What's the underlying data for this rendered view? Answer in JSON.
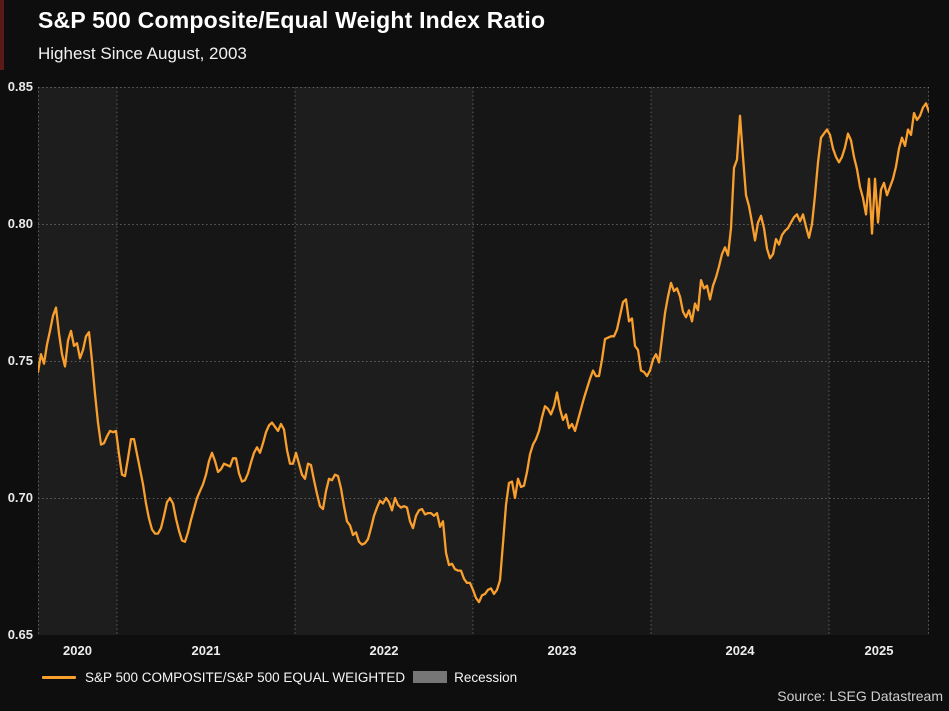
{
  "header": {
    "title": "S&P 500 Composite/Equal Weight Index Ratio",
    "subtitle": "Highest Since August, 2003"
  },
  "footer": {
    "source": "Source: LSEG Datastream"
  },
  "legend": {
    "series_label": "S&P 500 COMPOSITE/S&P 500 EQUAL WEIGHTED",
    "recession_label": "Recession",
    "series_color": "#F89F2E",
    "recession_color": "#767676"
  },
  "colors": {
    "page_bg": "#0e0e0e",
    "band_even_year": "#1d1d1d",
    "band_odd_year": "#161616",
    "gridline": "#9a9a9a"
  },
  "chart_data": {
    "type": "line",
    "title": "S&P 500 Composite/Equal Weight Index Ratio",
    "subtitle": "Highest Since August, 2003",
    "xlabel": "",
    "ylabel": "",
    "ylim": [
      0.65,
      0.85
    ],
    "xlim": [
      2020.5562,
      2025.5618
    ],
    "y_ticks": [
      "0.85",
      "0.80",
      "0.75",
      "0.70",
      "0.65"
    ],
    "y_tick_values": [
      0.85,
      0.8,
      0.75,
      0.7,
      0.65
    ],
    "x_ticks": [
      "2020",
      "2021",
      "2022",
      "2023",
      "2024",
      "2025"
    ],
    "x_tick_years": [
      2020,
      2021,
      2022,
      2023,
      2024,
      2025
    ],
    "grid": "dotted",
    "legend_position": "bottom",
    "plot_bands_alternate_by_year": true,
    "series": [
      {
        "name": "S&P 500 COMPOSITE/S&P 500 EQUAL WEIGHTED",
        "color": "#F89F2E",
        "x_start": 2020.5562,
        "x_step": 0.016854,
        "values": [
          0.746,
          0.7525,
          0.749,
          0.756,
          0.761,
          0.7665,
          0.7695,
          0.76,
          0.7525,
          0.748,
          0.7575,
          0.761,
          0.7555,
          0.7565,
          0.751,
          0.754,
          0.759,
          0.7605,
          0.75,
          0.738,
          0.7275,
          0.7195,
          0.72,
          0.7225,
          0.7245,
          0.724,
          0.7245,
          0.716,
          0.7085,
          0.708,
          0.7145,
          0.7215,
          0.7215,
          0.716,
          0.7105,
          0.705,
          0.698,
          0.6925,
          0.6885,
          0.687,
          0.687,
          0.689,
          0.6935,
          0.6985,
          0.7,
          0.698,
          0.6925,
          0.688,
          0.6845,
          0.684,
          0.6875,
          0.692,
          0.696,
          0.7,
          0.7025,
          0.705,
          0.7085,
          0.7135,
          0.7165,
          0.7135,
          0.7095,
          0.7105,
          0.7125,
          0.712,
          0.7115,
          0.7145,
          0.7145,
          0.709,
          0.706,
          0.7065,
          0.709,
          0.713,
          0.7165,
          0.7185,
          0.7165,
          0.72,
          0.724,
          0.7265,
          0.7275,
          0.726,
          0.7245,
          0.727,
          0.725,
          0.7175,
          0.7125,
          0.7125,
          0.7165,
          0.7125,
          0.7085,
          0.707,
          0.7125,
          0.712,
          0.7065,
          0.7015,
          0.697,
          0.696,
          0.7025,
          0.707,
          0.7065,
          0.7085,
          0.708,
          0.7035,
          0.697,
          0.6915,
          0.69,
          0.6865,
          0.6875,
          0.684,
          0.683,
          0.6835,
          0.685,
          0.689,
          0.6935,
          0.6965,
          0.699,
          0.698,
          0.7,
          0.6985,
          0.6955,
          0.7,
          0.6975,
          0.6965,
          0.697,
          0.6965,
          0.6915,
          0.689,
          0.6935,
          0.6955,
          0.696,
          0.694,
          0.6945,
          0.6945,
          0.6935,
          0.6945,
          0.6895,
          0.6915,
          0.68,
          0.6755,
          0.676,
          0.674,
          0.6735,
          0.6735,
          0.6705,
          0.669,
          0.669,
          0.6665,
          0.6635,
          0.662,
          0.6645,
          0.665,
          0.6665,
          0.667,
          0.665,
          0.6665,
          0.67,
          0.6835,
          0.6975,
          0.7055,
          0.706,
          0.7,
          0.707,
          0.704,
          0.7045,
          0.7095,
          0.716,
          0.7195,
          0.7215,
          0.7245,
          0.7295,
          0.7335,
          0.7325,
          0.7305,
          0.7335,
          0.7385,
          0.7325,
          0.7285,
          0.7305,
          0.7255,
          0.727,
          0.7245,
          0.7285,
          0.7325,
          0.7365,
          0.74,
          0.7435,
          0.7465,
          0.7445,
          0.7445,
          0.7505,
          0.758,
          0.7585,
          0.759,
          0.759,
          0.7615,
          0.7665,
          0.7715,
          0.7725,
          0.7645,
          0.7655,
          0.7555,
          0.754,
          0.7465,
          0.746,
          0.7445,
          0.7465,
          0.7505,
          0.7525,
          0.7495,
          0.7585,
          0.7675,
          0.7735,
          0.7785,
          0.7755,
          0.7765,
          0.7735,
          0.768,
          0.766,
          0.7685,
          0.7645,
          0.771,
          0.7685,
          0.7795,
          0.7765,
          0.7775,
          0.7725,
          0.7775,
          0.7805,
          0.7845,
          0.789,
          0.7915,
          0.7885,
          0.7985,
          0.8205,
          0.8235,
          0.8395,
          0.8245,
          0.8105,
          0.8065,
          0.8005,
          0.794,
          0.8005,
          0.803,
          0.7985,
          0.791,
          0.7875,
          0.789,
          0.7945,
          0.7925,
          0.796,
          0.7975,
          0.7985,
          0.8005,
          0.8025,
          0.8035,
          0.801,
          0.8035,
          0.799,
          0.795,
          0.8,
          0.8105,
          0.8225,
          0.8315,
          0.833,
          0.8345,
          0.8325,
          0.8275,
          0.8245,
          0.8225,
          0.8245,
          0.828,
          0.833,
          0.8305,
          0.8245,
          0.82,
          0.8135,
          0.8095,
          0.8035,
          0.8165,
          0.7965,
          0.8165,
          0.8005,
          0.8125,
          0.815,
          0.8105,
          0.8135,
          0.8165,
          0.821,
          0.8275,
          0.8315,
          0.8285,
          0.8345,
          0.8325,
          0.8405,
          0.838,
          0.8395,
          0.8425,
          0.844,
          0.841
        ]
      }
    ],
    "recession_bands": []
  }
}
